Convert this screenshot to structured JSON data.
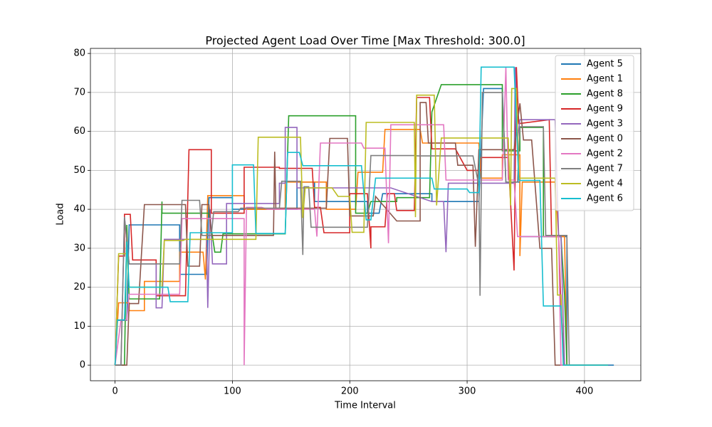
{
  "chart_data": {
    "type": "line",
    "title": "Projected Agent Load Over Time [Max Threshold: 300.0]",
    "x_label": "Time Interval",
    "y_label": "Load",
    "xlim": [
      -21,
      448
    ],
    "ylim": [
      -4,
      81.3
    ],
    "xticks": [
      0,
      100,
      200,
      300,
      400
    ],
    "yticks": [
      0,
      10,
      20,
      30,
      40,
      50,
      60,
      70,
      80
    ],
    "grid": true,
    "legend": "upper right",
    "series": [
      {
        "name": "Agent 5",
        "color": "#1f77b4",
        "x": [
          0,
          2,
          10,
          12,
          55,
          55,
          78,
          80,
          100,
          100,
          155,
          155,
          170,
          170,
          200,
          215,
          215,
          225,
          228,
          270,
          270,
          310,
          314,
          330,
          333,
          345,
          345,
          385,
          385,
          425
        ],
        "values": [
          0,
          11.5,
          11.5,
          36,
          36,
          23.3,
          23.3,
          43,
          43,
          40,
          40,
          47,
          47,
          42,
          42,
          42,
          39,
          39,
          44,
          44,
          42,
          42,
          71,
          71,
          47,
          47,
          33,
          33,
          0,
          0
        ]
      },
      {
        "name": "Agent 1",
        "color": "#ff7f0e",
        "x": [
          0,
          3,
          12,
          12,
          25,
          25,
          55,
          55,
          75,
          77,
          79,
          110,
          110,
          145,
          145,
          180,
          180,
          205,
          207,
          228,
          230,
          260,
          262,
          310,
          312,
          330,
          330,
          345,
          345,
          347,
          375,
          378,
          383,
          385,
          420
        ],
        "values": [
          0,
          16,
          16,
          14,
          14,
          21.5,
          21.5,
          29,
          29,
          22,
          43.5,
          43.5,
          40,
          40,
          47,
          47,
          40,
          40,
          49.5,
          49.5,
          60.5,
          60.5,
          57,
          57,
          48,
          48,
          54,
          54,
          28,
          47,
          47,
          33,
          33,
          0,
          0
        ]
      },
      {
        "name": "Agent 8",
        "color": "#2ca02c",
        "x": [
          0,
          8,
          10,
          12,
          38,
          40,
          40,
          80,
          85,
          90,
          92,
          145,
          148,
          205,
          205,
          215,
          218,
          240,
          240,
          268,
          270,
          278,
          330,
          330,
          345,
          345,
          365,
          365,
          380,
          383,
          385,
          420
        ],
        "values": [
          0,
          0,
          36,
          17,
          17,
          42,
          39,
          39,
          29,
          29,
          33.7,
          33.7,
          64,
          64,
          39,
          39,
          42,
          42,
          43,
          43,
          65,
          72,
          72,
          55,
          55,
          61,
          61,
          33,
          33,
          18,
          0,
          0
        ]
      },
      {
        "name": "Agent 9",
        "color": "#d62728",
        "x": [
          0,
          3,
          8,
          8,
          13,
          15,
          35,
          35,
          60,
          63,
          82,
          82,
          110,
          110,
          140,
          140,
          168,
          170,
          175,
          178,
          200,
          200,
          215,
          218,
          218,
          230,
          232,
          238,
          240,
          255,
          257,
          268,
          270,
          290,
          300,
          312,
          312,
          335,
          340,
          342,
          344,
          370,
          372,
          378,
          380,
          383,
          420
        ],
        "values": [
          0,
          28,
          28,
          38.7,
          38.7,
          27,
          27,
          17.8,
          17.8,
          55.3,
          55.3,
          39,
          39,
          50.8,
          50.8,
          50.5,
          50.5,
          40.5,
          40.5,
          34,
          34,
          44,
          44,
          30,
          35.5,
          35.5,
          44,
          44,
          39.7,
          39.7,
          68.7,
          68.7,
          55.5,
          55.5,
          50,
          50,
          53.3,
          53.3,
          24.3,
          76.5,
          62,
          63,
          33,
          33,
          15,
          0,
          0
        ]
      },
      {
        "name": "Agent 3",
        "color": "#9467bd",
        "x": [
          0,
          5,
          8,
          12,
          35,
          35,
          40,
          42,
          78,
          79,
          81,
          83,
          95,
          95,
          140,
          140,
          145,
          145,
          155,
          155,
          235,
          270,
          280,
          282,
          284,
          340,
          341,
          343,
          345,
          375,
          378,
          380,
          383,
          420
        ],
        "values": [
          0,
          0,
          38,
          26,
          26,
          14.7,
          14.7,
          32.3,
          32.3,
          14.7,
          40,
          26,
          26,
          41.5,
          41.5,
          46.7,
          46.7,
          61,
          61,
          45.5,
          45.5,
          42,
          42,
          29,
          46.7,
          46.7,
          76.5,
          58,
          63,
          63,
          33,
          33,
          0,
          0
        ]
      },
      {
        "name": "Agent 0",
        "color": "#8c564b",
        "x": [
          0,
          10,
          12,
          20,
          25,
          60,
          62,
          72,
          74,
          80,
          82,
          135,
          136,
          137,
          180,
          183,
          198,
          200,
          220,
          222,
          240,
          260,
          260,
          265,
          267,
          290,
          292,
          305,
          307,
          310,
          340,
          345,
          348,
          355,
          362,
          372,
          375,
          420
        ],
        "values": [
          0,
          0,
          15.8,
          15.8,
          41.2,
          41.2,
          25.4,
          25.4,
          41.2,
          41.2,
          33.3,
          33.3,
          54.8,
          40.3,
          40.3,
          58.2,
          58.2,
          38.3,
          38.3,
          43.3,
          37,
          37,
          67.4,
          67.4,
          57,
          57,
          51.3,
          51.3,
          30.4,
          55.3,
          55.3,
          67.2,
          57.8,
          57.8,
          30,
          30,
          0,
          0
        ]
      },
      {
        "name": "Agent 2",
        "color": "#e377c2",
        "x": [
          0,
          5,
          10,
          12,
          55,
          57,
          110,
          110,
          112,
          125,
          130,
          170,
          172,
          175,
          210,
          212,
          230,
          233,
          235,
          280,
          282,
          330,
          333,
          335,
          340,
          343,
          378,
          380,
          420
        ],
        "values": [
          0,
          11.6,
          11.6,
          18.2,
          18.2,
          37.6,
          37.6,
          0,
          40.5,
          40.5,
          40,
          40,
          33,
          57,
          57,
          55.7,
          55.7,
          31.3,
          61.7,
          61.7,
          47.5,
          47.5,
          76.5,
          47.5,
          47.5,
          33,
          33,
          0,
          0
        ]
      },
      {
        "name": "Agent 7",
        "color": "#7f7f7f",
        "x": [
          0,
          5,
          8,
          12,
          55,
          57,
          72,
          74,
          82,
          84,
          105,
          107,
          140,
          142,
          158,
          160,
          161,
          165,
          167,
          215,
          218,
          255,
          258,
          305,
          310,
          311,
          313,
          330,
          333,
          343,
          345,
          365,
          367,
          385,
          387,
          420
        ],
        "values": [
          0,
          0,
          38,
          26,
          26,
          42.3,
          42.3,
          33.3,
          33.3,
          39.4,
          39.4,
          40.3,
          40.3,
          47.2,
          47.2,
          28.3,
          45.8,
          45.8,
          35.4,
          35.4,
          53.8,
          53.8,
          53.7,
          53.7,
          46,
          17.8,
          70,
          70,
          47,
          47,
          61.2,
          61.2,
          33.3,
          33.3,
          0,
          0
        ]
      },
      {
        "name": "Agent 4",
        "color": "#bcbd22",
        "x": [
          0,
          3,
          10,
          12,
          40,
          42,
          58,
          60,
          120,
          122,
          158,
          160,
          162,
          185,
          190,
          200,
          202,
          212,
          214,
          255,
          256,
          257,
          272,
          274,
          278,
          335,
          337,
          338,
          342,
          344,
          375,
          377,
          380,
          382,
          420
        ],
        "values": [
          0,
          28.6,
          28.6,
          20,
          20,
          32,
          32,
          32.3,
          32.3,
          58.5,
          58.5,
          37.8,
          45.5,
          45.5,
          43.3,
          43.3,
          34.1,
          34.1,
          62.3,
          62.3,
          38,
          69.3,
          69.3,
          41,
          58.3,
          58.3,
          41,
          71,
          71,
          48,
          48,
          18,
          18,
          0,
          0
        ]
      },
      {
        "name": "Agent 6",
        "color": "#17becf",
        "x": [
          0,
          2,
          8,
          10,
          12,
          45,
          47,
          62,
          64,
          100,
          100,
          118,
          120,
          145,
          147,
          157,
          160,
          210,
          214,
          218,
          222,
          270,
          272,
          300,
          302,
          310,
          312,
          340,
          344,
          362,
          365,
          380,
          382,
          420
        ],
        "values": [
          0,
          11.6,
          11.6,
          31.7,
          20,
          20,
          16.3,
          16.3,
          34,
          34,
          51.4,
          51.4,
          33.8,
          33.8,
          54.6,
          54.6,
          51.2,
          51.2,
          37.3,
          37.3,
          48,
          48,
          45.2,
          45.2,
          44.3,
          44.3,
          76.5,
          76.5,
          47.4,
          47.4,
          15.2,
          15.2,
          0,
          0
        ]
      }
    ]
  }
}
